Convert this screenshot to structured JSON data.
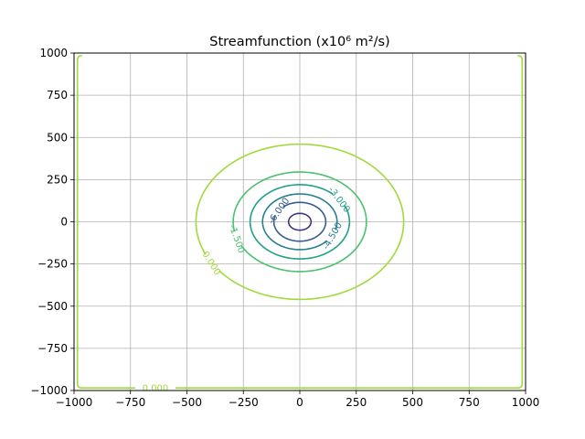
{
  "chart_data": {
    "type": "contour",
    "title": "Streamfunction (x10⁶ m²/s)",
    "xlabel": "",
    "ylabel": "",
    "xlim": [
      -1000,
      1000
    ],
    "ylim": [
      -1000,
      1000
    ],
    "xticks": [
      -1000,
      -750,
      -500,
      -250,
      0,
      250,
      500,
      750,
      1000
    ],
    "yticks": [
      -1000,
      -750,
      -500,
      -250,
      0,
      250,
      500,
      750,
      1000
    ],
    "xtick_labels": [
      "−1000",
      "−750",
      "−500",
      "−250",
      "0",
      "250",
      "500",
      "750",
      "1000"
    ],
    "ytick_labels": [
      "−1000",
      "−750",
      "−500",
      "−250",
      "0",
      "250",
      "500",
      "750",
      "1000"
    ],
    "grid": true,
    "center": [
      0,
      0
    ],
    "contours": [
      {
        "level": 0.0,
        "radius": 460,
        "color": "#a0da39",
        "label": "0.000"
      },
      {
        "level": -1.5,
        "radius": 295,
        "color": "#4ac16d",
        "label": "-1.500"
      },
      {
        "level": -3.0,
        "radius": 220,
        "color": "#1fa187",
        "label": "-3.000"
      },
      {
        "level": -4.5,
        "radius": 165,
        "color": "#277f8e",
        "label": "-4.500"
      },
      {
        "level": -6.0,
        "radius": 115,
        "color": "#365c8d",
        "label": "-6.000"
      },
      {
        "level": -7.5,
        "radius": 50,
        "color": "#46327e",
        "label": ""
      }
    ],
    "boundary_contour": {
      "level": 0.0,
      "x_extent": [
        -985,
        985
      ],
      "y_extent": [
        -985,
        985
      ],
      "color": "#a0da39",
      "label": "0.000",
      "label_at": [
        -640,
        -985
      ]
    }
  }
}
